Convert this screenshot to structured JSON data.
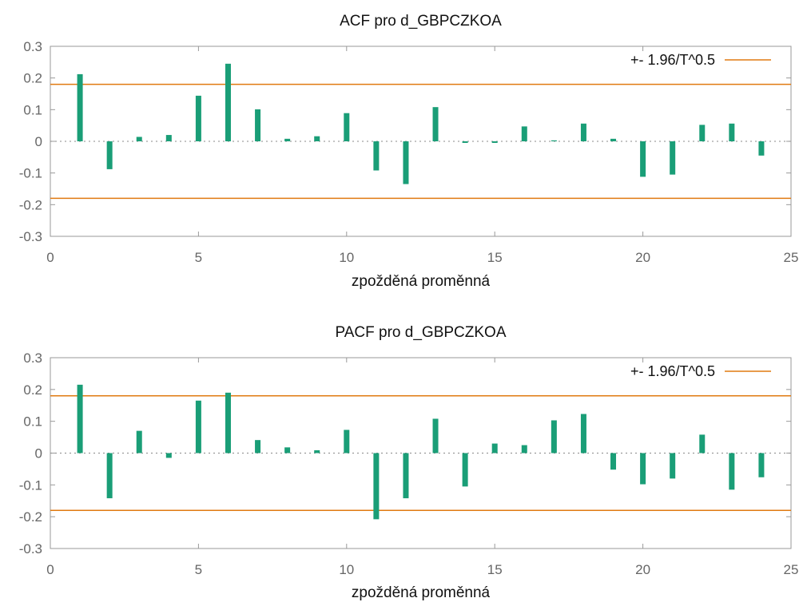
{
  "colors": {
    "bar": "#1a9e77",
    "band": "#e07a10"
  },
  "chart_data": [
    {
      "type": "bar",
      "title": "ACF pro d_GBPCZKOA",
      "xlabel": "zpožděná proměnná",
      "ylabel": "",
      "xlim": [
        0,
        25
      ],
      "ylim": [
        -0.3,
        0.3
      ],
      "xticks": [
        "0",
        "5",
        "10",
        "15",
        "20",
        "25"
      ],
      "yticks": [
        "0.3",
        "0.2",
        "0.1",
        "0",
        "-0.1",
        "-0.2",
        "-0.3"
      ],
      "grid": false,
      "legend": {
        "label": "+- 1.96/T^0.5",
        "position": "top-right"
      },
      "band": 0.18,
      "x": [
        1,
        2,
        3,
        4,
        5,
        6,
        7,
        8,
        9,
        10,
        11,
        12,
        13,
        14,
        15,
        16,
        17,
        18,
        19,
        20,
        21,
        22,
        23,
        24
      ],
      "values": [
        0.212,
        -0.088,
        0.014,
        0.02,
        0.144,
        0.245,
        0.101,
        0.008,
        0.016,
        0.089,
        -0.092,
        -0.135,
        0.108,
        -0.005,
        -0.005,
        0.047,
        0.003,
        0.056,
        0.008,
        -0.112,
        -0.105,
        0.052,
        0.056,
        -0.045
      ]
    },
    {
      "type": "bar",
      "title": "PACF pro d_GBPCZKOA",
      "xlabel": "zpožděná proměnná",
      "ylabel": "",
      "xlim": [
        0,
        25
      ],
      "ylim": [
        -0.3,
        0.3
      ],
      "xticks": [
        "0",
        "5",
        "10",
        "15",
        "20",
        "25"
      ],
      "yticks": [
        "0.3",
        "0.2",
        "0.1",
        "0",
        "-0.1",
        "-0.2",
        "-0.3"
      ],
      "grid": false,
      "legend": {
        "label": "+- 1.96/T^0.5",
        "position": "top-right"
      },
      "band": 0.18,
      "x": [
        1,
        2,
        3,
        4,
        5,
        6,
        7,
        8,
        9,
        10,
        11,
        12,
        13,
        14,
        15,
        16,
        17,
        18,
        19,
        20,
        21,
        22,
        23,
        24
      ],
      "values": [
        0.215,
        -0.142,
        0.07,
        -0.015,
        0.165,
        0.19,
        0.041,
        0.018,
        0.009,
        0.073,
        -0.208,
        -0.142,
        0.108,
        -0.105,
        0.03,
        0.025,
        0.103,
        0.123,
        -0.052,
        -0.098,
        -0.08,
        0.058,
        -0.115,
        -0.076
      ]
    }
  ]
}
